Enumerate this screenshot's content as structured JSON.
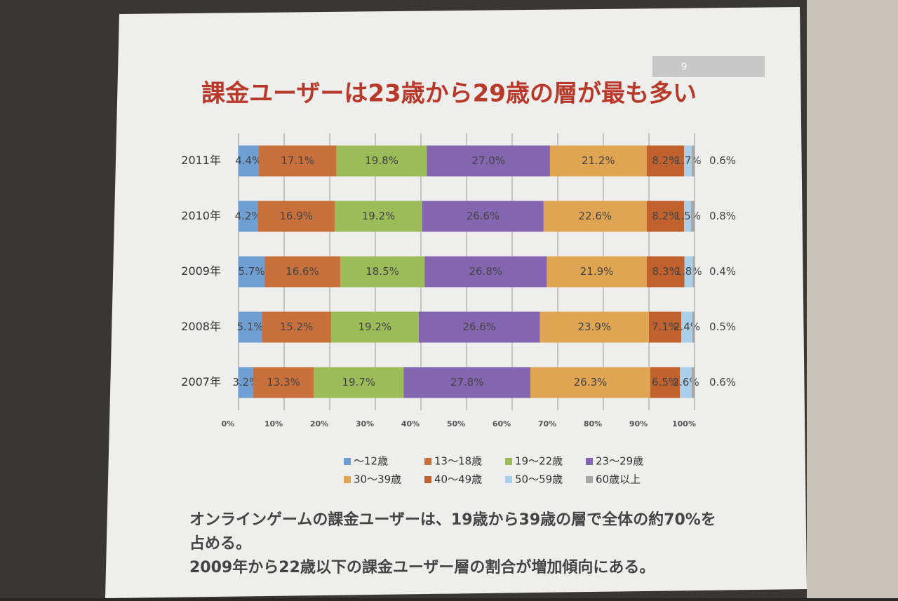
{
  "chart_data": {
    "type": "stacked-bar-horizontal",
    "title": "課金ユーザーは23歳から29歳の層が最も多い",
    "slide_number": "9",
    "categories": [
      "2011年",
      "2010年",
      "2009年",
      "2008年",
      "2007年"
    ],
    "series": [
      {
        "name": "～12歳",
        "color": "#6f9fd2",
        "values": [
          4.4,
          4.2,
          5.7,
          5.1,
          3.2
        ],
        "value_labels": [
          "4.4%",
          "4.2%",
          "5.7%",
          "5.1%",
          "3.2%"
        ]
      },
      {
        "name": "13～18歳",
        "color": "#c8703c",
        "values": [
          17.1,
          16.9,
          16.6,
          15.2,
          13.3
        ],
        "value_labels": [
          "17.1%",
          "16.9%",
          "16.6%",
          "15.2%",
          "13.3%"
        ]
      },
      {
        "name": "19～22歳",
        "color": "#9cbc5a",
        "values": [
          19.8,
          19.2,
          18.5,
          19.2,
          19.7
        ],
        "value_labels": [
          "19.8%",
          "19.2%",
          "18.5%",
          "19.2%",
          "19.7%"
        ]
      },
      {
        "name": "23～29歳",
        "color": "#8466b0",
        "values": [
          27.0,
          26.6,
          26.8,
          26.6,
          27.8
        ],
        "value_labels": [
          "27.0%",
          "26.6%",
          "26.8%",
          "26.6%",
          "27.8%"
        ]
      },
      {
        "name": "30～39歳",
        "color": "#e0a552",
        "values": [
          21.2,
          22.6,
          21.9,
          23.9,
          26.3
        ],
        "value_labels": [
          "21.2%",
          "22.6%",
          "21.9%",
          "23.9%",
          "26.3%"
        ]
      },
      {
        "name": "40～49歳",
        "color": "#c0612e",
        "values": [
          8.2,
          8.2,
          8.3,
          7.1,
          6.5
        ],
        "value_labels": [
          "8.2%",
          "8.2%",
          "8.3%",
          "7.1%",
          "6.5%"
        ]
      },
      {
        "name": "50～59歳",
        "color": "#a9cfea",
        "values": [
          1.7,
          1.5,
          1.8,
          2.4,
          2.6
        ],
        "value_labels": [
          "1.7%",
          "1.5%",
          "1.8%",
          "2.4%",
          "2.6%"
        ]
      },
      {
        "name": "60歳以上",
        "color": "#a6a6a6",
        "values": [
          0.6,
          0.8,
          0.4,
          0.5,
          0.6
        ],
        "value_labels": [
          "0.6%",
          "0.8%",
          "0.4%",
          "0.5%",
          "0.6%"
        ]
      }
    ],
    "xlim": [
      0,
      100
    ],
    "xticks": [
      {
        "value": 0,
        "label": "0%"
      },
      {
        "value": 10,
        "label": "10%"
      },
      {
        "value": 20,
        "label": "20%"
      },
      {
        "value": 30,
        "label": "30%"
      },
      {
        "value": 40,
        "label": "40%"
      },
      {
        "value": 50,
        "label": "50%"
      },
      {
        "value": 60,
        "label": "60%"
      },
      {
        "value": 70,
        "label": "70%"
      },
      {
        "value": 80,
        "label": "80%"
      },
      {
        "value": 90,
        "label": "90%"
      },
      {
        "value": 100,
        "label": "100%"
      }
    ],
    "grid": true,
    "legend": "bottom",
    "annotations": [
      "オンラインゲームの課金ユーザーは、19歳から39歳の層で全体の約70%を",
      "占める。",
      "2009年から22歳以下の課金ユーザー層の割合が増加傾向にある。"
    ]
  }
}
